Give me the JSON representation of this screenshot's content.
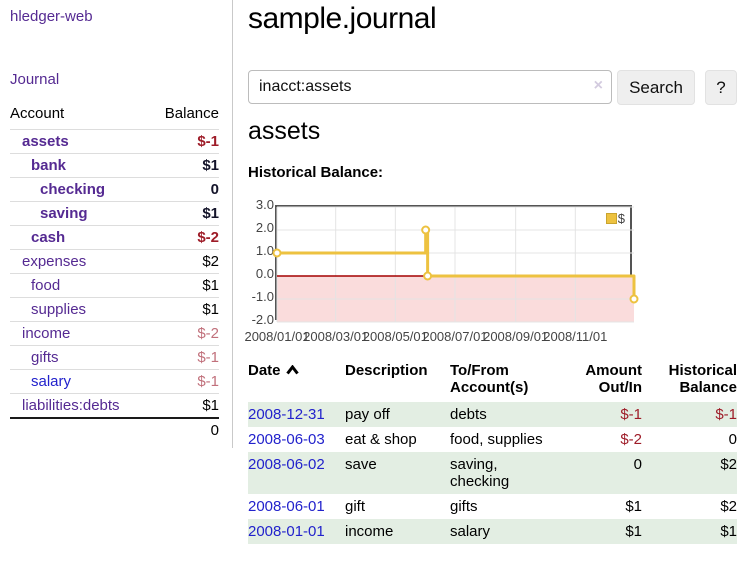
{
  "colors": {
    "link_purple": "#552a92",
    "link_blue": "#2222cc",
    "negative_strong": "#9e1c28",
    "negative_soft": "#c1707b",
    "row_stripe_green": "#e3eee3",
    "chart_line_gold": "#edc240"
  },
  "app": {
    "brand": "hledger-web",
    "nav_journal": "Journal"
  },
  "sidebar": {
    "accounts_table": {
      "header": {
        "account": "Account",
        "balance": "Balance"
      },
      "rows": [
        {
          "name": "assets",
          "balance": "$-1"
        },
        {
          "name": "bank",
          "balance": "$1"
        },
        {
          "name": "checking",
          "balance": "0"
        },
        {
          "name": "saving",
          "balance": "$1"
        },
        {
          "name": "cash",
          "balance": "$-2"
        },
        {
          "name": "expenses",
          "balance": "$2"
        },
        {
          "name": "food",
          "balance": "$1"
        },
        {
          "name": "supplies",
          "balance": "$1"
        },
        {
          "name": "income",
          "balance": "$-2"
        },
        {
          "name": "gifts",
          "balance": "$-1"
        },
        {
          "name": "salary",
          "balance": "$-1"
        },
        {
          "name": "liabilities:debts",
          "balance": "$1"
        }
      ],
      "total": "0"
    }
  },
  "main": {
    "title": "sample.journal",
    "search": {
      "value": "inacct:assets",
      "clear_icon": "×",
      "search_button": "Search",
      "help_button": "?"
    },
    "account_title": "assets",
    "section_label": "Historical Balance:"
  },
  "chart_data": {
    "type": "line",
    "title": "Historical Balance",
    "legend": {
      "label": "$",
      "position": "top-right"
    },
    "x_start": "2008-01-01",
    "x_end": "2008-12-31",
    "ylim": [
      -2,
      3
    ],
    "yticks": [
      {
        "label": "3.0",
        "value": 3
      },
      {
        "label": "2.0",
        "value": 2
      },
      {
        "label": "1.0",
        "value": 1
      },
      {
        "label": "0.0",
        "value": 0
      },
      {
        "label": "-1.0",
        "value": -1
      },
      {
        "label": "-2.0",
        "value": -2
      }
    ],
    "xticks": [
      {
        "label": "2008/01/01",
        "date": "2008-01-01"
      },
      {
        "label": "2008/03/01",
        "date": "2008-03-01"
      },
      {
        "label": "2008/05/01",
        "date": "2008-05-01"
      },
      {
        "label": "2008/07/01",
        "date": "2008-07-01"
      },
      {
        "label": "2008/09/01",
        "date": "2008-09-01"
      },
      {
        "label": "2008/11/01",
        "date": "2008-11-01"
      }
    ],
    "series": [
      {
        "name": "$",
        "color": "#edc240",
        "marker_fill": "#ffffff",
        "step": true,
        "points": [
          {
            "date": "2008-01-01",
            "value": 1
          },
          {
            "date": "2008-06-01",
            "value": 2
          },
          {
            "date": "2008-06-03",
            "value": 0
          },
          {
            "date": "2008-12-31",
            "value": -1
          }
        ]
      }
    ],
    "styles": {
      "negative_region": "#fadcdc",
      "zero_line": "#a40000",
      "grid_line": "#e4e4e4",
      "border": "#545454"
    }
  },
  "register": {
    "headers": {
      "date": "Date",
      "description": "Description",
      "accounts": "To/From\nAccount(s)",
      "amount": "Amount\nOut/In",
      "balance": "Historical\nBalance"
    },
    "rows": [
      {
        "date": "2008-12-31",
        "description": "pay off",
        "accounts": "debts",
        "amount": "$-1",
        "balance": "$-1"
      },
      {
        "date": "2008-06-03",
        "description": "eat & shop",
        "accounts": "food, supplies",
        "amount": "$-2",
        "balance": "0"
      },
      {
        "date": "2008-06-02",
        "description": "save",
        "accounts": "saving,\nchecking",
        "amount": "0",
        "balance": "$2"
      },
      {
        "date": "2008-06-01",
        "description": "gift",
        "accounts": "gifts",
        "amount": "$1",
        "balance": "$2"
      },
      {
        "date": "2008-01-01",
        "description": "income",
        "accounts": "salary",
        "amount": "$1",
        "balance": "$1"
      }
    ]
  }
}
